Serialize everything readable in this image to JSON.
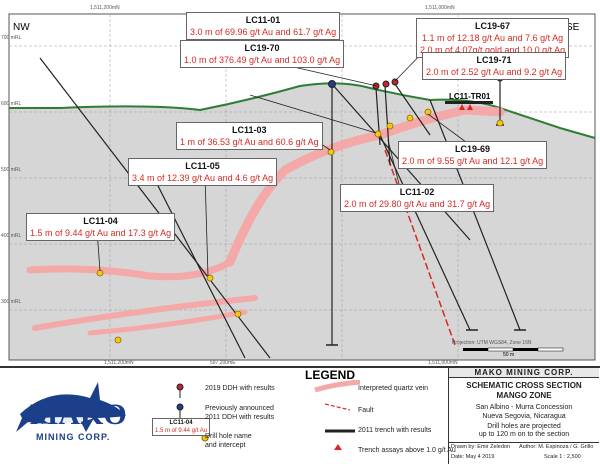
{
  "section": {
    "dir_left": "NW",
    "dir_right": "SE",
    "grid_top": [
      "1,511,200mN",
      "1,511,000mN"
    ],
    "elev_labels": [
      "700 mRL",
      "600 mRL",
      "500 mRL",
      "400 mRL",
      "300 mRL"
    ],
    "easting_bottom": [
      "1,511,200mN",
      "597,200mE",
      "1,511,000mN"
    ],
    "scale_label": "50 m",
    "projection_note": "Projection: UTM WGS84, Zone 16N"
  },
  "holes": {
    "lc11_01": {
      "name": "LC11-01",
      "result": "3.0 m of 69.96 g/t Au and 61.7 g/t Ag"
    },
    "lc19_70": {
      "name": "LC19-70",
      "result": "1.0 m of 376.49 g/t Au and 103.0 g/t Ag"
    },
    "lc19_67": {
      "name": "LC19-67",
      "result_1": "1.1 m of 12.18 g/t Au and 7.6 g/t Ag",
      "result_2": "2.0 m of 4.07g/t gold and 10.0 g/t Ag"
    },
    "lc19_71": {
      "name": "LC19-71",
      "result": "2.0 m of 2.52 g/t Au and 9.2 g/t Ag"
    },
    "lc11_tr01": {
      "name": "LC11-TR01"
    },
    "lc11_03": {
      "name": "LC11-03",
      "result": "1 m of 36.53 g/t Au and 60.6 g/t Ag"
    },
    "lc19_69": {
      "name": "LC19-69",
      "result": "2.0 m of 9.55 g/t Au and 12.1 g/t Ag"
    },
    "lc11_05": {
      "name": "LC11-05",
      "result": "3.4 m of 12.39 g/t Au and 4.6 g/t Ag"
    },
    "lc11_02": {
      "name": "LC11-02",
      "result": "2.0 m of 29.80 g/t Au and 31.7 g/t Ag"
    },
    "lc11_04": {
      "name": "LC11-04",
      "result": "1.5 m of 9.44 g/t Au and 17.3 g/t Ag"
    }
  },
  "legend": {
    "title": "LEGEND",
    "items": {
      "ddh_2019": "2019 DDH with results",
      "ddh_2011": "Previously announced\n2011 DDH with results",
      "drill_name": "Drill hole name\nand intercept",
      "vein": "Interpreted quartz vein",
      "fault": "Fault",
      "trench": "2011 trench with results",
      "trench_assay": "Trench assays above 1.0 g/t Au"
    },
    "sample_label_hole": "LC11-04",
    "sample_label_text": "1.5 m of 9.44 g/t Au"
  },
  "company": {
    "name": "MAKO",
    "tag": "MINING CORP.",
    "header": "MAKO MINING CORP."
  },
  "title_block": {
    "title_1": "SCHEMATIC CROSS SECTION",
    "title_2": "MANGO ZONE",
    "location_1": "San Albino - Murra Concession",
    "location_2": "Nueva Segovia, Nicaragua",
    "note_1": "Drill holes are projected",
    "note_2": "up to 120 m on to the section",
    "drawn_by": "Drawn by: Emir Zeledon",
    "author": "Author: M. Espinoza / G. Grillo",
    "date": "Date: May 4 2019",
    "scale": "Scale 1 : 2,500"
  },
  "colors": {
    "ground": "#d6d6d6",
    "topo": "#2e7d32",
    "vein": "#f4a8a8",
    "label_red": "#d42a24",
    "brand_blue": "#1c3f8a"
  }
}
